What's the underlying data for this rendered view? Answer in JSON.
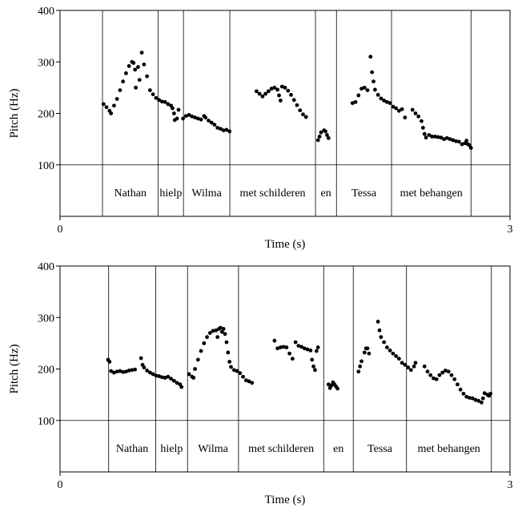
{
  "chart_data": [
    {
      "type": "scatter",
      "xlabel": "Time (s)",
      "ylabel": "Pitch (Hz)",
      "xlim": [
        0,
        3
      ],
      "ylim": [
        0,
        400
      ],
      "x_ticks": [
        "0",
        "3"
      ],
      "y_ticks": [
        "100",
        "200",
        "300",
        "400"
      ],
      "reference_line_y": 100,
      "boundaries": [
        0.283,
        0.654,
        0.823,
        1.132,
        1.703,
        1.843,
        2.21,
        2.74
      ],
      "words": [
        {
          "label": "Nathan",
          "start": 0.283,
          "end": 0.654
        },
        {
          "label": "hielp",
          "start": 0.654,
          "end": 0.823
        },
        {
          "label": "Wilma",
          "start": 0.823,
          "end": 1.132
        },
        {
          "label": "met schilderen",
          "start": 1.132,
          "end": 1.703
        },
        {
          "label": "en",
          "start": 1.703,
          "end": 1.843
        },
        {
          "label": "Tessa",
          "start": 1.843,
          "end": 2.21
        },
        {
          "label": "met behangen",
          "start": 2.21,
          "end": 2.74
        }
      ],
      "segments": [
        [
          [
            0.29,
            218
          ],
          [
            0.31,
            212
          ],
          [
            0.33,
            205
          ],
          [
            0.34,
            200
          ],
          [
            0.36,
            215
          ],
          [
            0.38,
            228
          ],
          [
            0.4,
            245
          ],
          [
            0.42,
            262
          ],
          [
            0.44,
            278
          ],
          [
            0.46,
            292
          ],
          [
            0.48,
            300
          ],
          [
            0.49,
            298
          ],
          [
            0.5,
            285
          ],
          [
            0.505,
            250
          ],
          [
            0.52,
            290
          ],
          [
            0.53,
            265
          ],
          [
            0.545,
            318
          ],
          [
            0.56,
            295
          ],
          [
            0.58,
            272
          ],
          [
            0.6,
            245
          ],
          [
            0.62,
            237
          ],
          [
            0.64,
            230
          ],
          [
            0.66,
            226
          ],
          [
            0.68,
            223
          ],
          [
            0.7,
            222
          ],
          [
            0.72,
            218
          ],
          [
            0.74,
            215
          ],
          [
            0.75,
            210
          ],
          [
            0.76,
            200
          ],
          [
            0.765,
            187
          ],
          [
            0.78,
            190
          ],
          [
            0.79,
            207
          ]
        ],
        [
          [
            0.82,
            190
          ],
          [
            0.84,
            195
          ],
          [
            0.86,
            197
          ],
          [
            0.88,
            194
          ],
          [
            0.9,
            192
          ],
          [
            0.92,
            190
          ],
          [
            0.94,
            188
          ],
          [
            0.96,
            195
          ],
          [
            0.97,
            192
          ],
          [
            0.99,
            186
          ],
          [
            1.01,
            182
          ],
          [
            1.03,
            178
          ],
          [
            1.05,
            172
          ],
          [
            1.07,
            170
          ],
          [
            1.09,
            167
          ],
          [
            1.11,
            168
          ],
          [
            1.13,
            165
          ]
        ],
        [
          [
            1.31,
            243
          ],
          [
            1.33,
            238
          ],
          [
            1.35,
            233
          ],
          [
            1.37,
            238
          ],
          [
            1.39,
            243
          ],
          [
            1.41,
            248
          ],
          [
            1.43,
            250
          ],
          [
            1.45,
            246
          ],
          [
            1.46,
            235
          ],
          [
            1.47,
            225
          ],
          [
            1.48,
            252
          ],
          [
            1.5,
            250
          ],
          [
            1.52,
            244
          ],
          [
            1.54,
            236
          ],
          [
            1.56,
            226
          ],
          [
            1.58,
            216
          ],
          [
            1.6,
            206
          ],
          [
            1.62,
            198
          ],
          [
            1.64,
            193
          ]
        ],
        [
          [
            1.72,
            148
          ],
          [
            1.73,
            155
          ],
          [
            1.74,
            163
          ],
          [
            1.76,
            167
          ],
          [
            1.77,
            165
          ],
          [
            1.78,
            158
          ],
          [
            1.79,
            152
          ]
        ],
        [
          [
            1.95,
            220
          ],
          [
            1.97,
            222
          ],
          [
            1.99,
            235
          ],
          [
            2.01,
            248
          ],
          [
            2.03,
            250
          ],
          [
            2.05,
            245
          ],
          [
            2.07,
            310
          ],
          [
            2.08,
            280
          ],
          [
            2.09,
            262
          ],
          [
            2.1,
            246
          ],
          [
            2.12,
            236
          ],
          [
            2.14,
            229
          ],
          [
            2.16,
            225
          ],
          [
            2.18,
            222
          ],
          [
            2.2,
            220
          ],
          [
            2.22,
            213
          ],
          [
            2.24,
            210
          ],
          [
            2.26,
            205
          ],
          [
            2.28,
            208
          ],
          [
            2.3,
            192
          ]
        ],
        [
          [
            2.35,
            207
          ],
          [
            2.37,
            200
          ],
          [
            2.39,
            194
          ],
          [
            2.41,
            185
          ],
          [
            2.42,
            172
          ],
          [
            2.43,
            160
          ],
          [
            2.44,
            153
          ],
          [
            2.46,
            158
          ],
          [
            2.48,
            155
          ],
          [
            2.5,
            155
          ],
          [
            2.52,
            154
          ],
          [
            2.54,
            153
          ],
          [
            2.56,
            150
          ],
          [
            2.58,
            152
          ],
          [
            2.6,
            150
          ],
          [
            2.62,
            148
          ],
          [
            2.64,
            146
          ],
          [
            2.66,
            145
          ],
          [
            2.68,
            140
          ],
          [
            2.7,
            142
          ],
          [
            2.71,
            147
          ],
          [
            2.72,
            140
          ],
          [
            2.73,
            138
          ],
          [
            2.74,
            133
          ]
        ]
      ]
    },
    {
      "type": "scatter",
      "xlabel": "Time (s)",
      "ylabel": "Pitch (Hz)",
      "xlim": [
        0,
        3
      ],
      "ylim": [
        0,
        400
      ],
      "x_ticks": [
        "0",
        "3"
      ],
      "y_ticks": [
        "100",
        "200",
        "300",
        "400"
      ],
      "reference_line_y": 100,
      "boundaries": [
        0.324,
        0.638,
        0.85,
        1.19,
        1.758,
        1.955,
        2.31,
        2.876
      ],
      "words": [
        {
          "label": "Nathan",
          "start": 0.324,
          "end": 0.638
        },
        {
          "label": "hielp",
          "start": 0.638,
          "end": 0.85
        },
        {
          "label": "Wilma",
          "start": 0.85,
          "end": 1.19
        },
        {
          "label": "met schilderen",
          "start": 1.19,
          "end": 1.758
        },
        {
          "label": "en",
          "start": 1.758,
          "end": 1.955
        },
        {
          "label": "Tessa",
          "start": 1.955,
          "end": 2.31
        },
        {
          "label": "met behangen",
          "start": 2.31,
          "end": 2.876
        }
      ],
      "segments": [
        [
          [
            0.32,
            218
          ],
          [
            0.33,
            214
          ],
          [
            0.34,
            196
          ],
          [
            0.36,
            193
          ],
          [
            0.38,
            195
          ],
          [
            0.4,
            196
          ],
          [
            0.42,
            194
          ],
          [
            0.44,
            195
          ],
          [
            0.46,
            197
          ],
          [
            0.48,
            198
          ],
          [
            0.5,
            199
          ],
          [
            0.54,
            221
          ],
          [
            0.55,
            208
          ],
          [
            0.56,
            203
          ],
          [
            0.58,
            197
          ],
          [
            0.6,
            193
          ],
          [
            0.62,
            190
          ],
          [
            0.64,
            187
          ],
          [
            0.66,
            186
          ],
          [
            0.68,
            184
          ],
          [
            0.7,
            183
          ],
          [
            0.72,
            185
          ],
          [
            0.74,
            181
          ],
          [
            0.76,
            177
          ],
          [
            0.78,
            173
          ],
          [
            0.8,
            170
          ],
          [
            0.81,
            165
          ]
        ],
        [
          [
            0.86,
            190
          ],
          [
            0.88,
            185
          ],
          [
            0.89,
            183
          ],
          [
            0.9,
            200
          ],
          [
            0.92,
            218
          ],
          [
            0.94,
            235
          ],
          [
            0.96,
            250
          ],
          [
            0.98,
            262
          ],
          [
            1.0,
            270
          ],
          [
            1.02,
            274
          ],
          [
            1.04,
            275
          ],
          [
            1.05,
            262
          ],
          [
            1.06,
            278
          ],
          [
            1.07,
            280
          ],
          [
            1.08,
            272
          ],
          [
            1.09,
            278
          ],
          [
            1.1,
            268
          ],
          [
            1.11,
            252
          ],
          [
            1.12,
            232
          ],
          [
            1.13,
            214
          ],
          [
            1.14,
            204
          ],
          [
            1.16,
            198
          ],
          [
            1.18,
            196
          ],
          [
            1.2,
            192
          ],
          [
            1.22,
            185
          ],
          [
            1.24,
            178
          ],
          [
            1.26,
            176
          ],
          [
            1.28,
            173
          ]
        ],
        [
          [
            1.43,
            255
          ],
          [
            1.45,
            240
          ],
          [
            1.47,
            242
          ],
          [
            1.49,
            243
          ],
          [
            1.51,
            242
          ],
          [
            1.53,
            230
          ],
          [
            1.55,
            220
          ],
          [
            1.57,
            252
          ],
          [
            1.59,
            245
          ],
          [
            1.61,
            243
          ],
          [
            1.63,
            240
          ],
          [
            1.65,
            238
          ],
          [
            1.67,
            236
          ],
          [
            1.68,
            218
          ],
          [
            1.69,
            205
          ],
          [
            1.7,
            198
          ],
          [
            1.71,
            235
          ],
          [
            1.72,
            242
          ]
        ],
        [
          [
            1.79,
            170
          ],
          [
            1.8,
            163
          ],
          [
            1.81,
            168
          ],
          [
            1.82,
            174
          ],
          [
            1.83,
            170
          ],
          [
            1.84,
            166
          ],
          [
            1.85,
            162
          ]
        ],
        [
          [
            1.99,
            195
          ],
          [
            2.0,
            205
          ],
          [
            2.01,
            215
          ],
          [
            2.03,
            232
          ],
          [
            2.04,
            240
          ],
          [
            2.05,
            240
          ],
          [
            2.06,
            230
          ],
          [
            2.12,
            292
          ],
          [
            2.13,
            275
          ],
          [
            2.14,
            262
          ],
          [
            2.16,
            252
          ],
          [
            2.18,
            242
          ],
          [
            2.2,
            236
          ],
          [
            2.22,
            230
          ],
          [
            2.24,
            225
          ],
          [
            2.26,
            220
          ],
          [
            2.28,
            212
          ],
          [
            2.3,
            208
          ],
          [
            2.32,
            203
          ],
          [
            2.34,
            198
          ],
          [
            2.36,
            205
          ],
          [
            2.37,
            212
          ]
        ],
        [
          [
            2.43,
            205
          ],
          [
            2.45,
            195
          ],
          [
            2.47,
            188
          ],
          [
            2.49,
            182
          ],
          [
            2.51,
            180
          ],
          [
            2.53,
            188
          ],
          [
            2.55,
            193
          ],
          [
            2.57,
            197
          ],
          [
            2.59,
            195
          ],
          [
            2.61,
            188
          ],
          [
            2.63,
            180
          ],
          [
            2.65,
            170
          ],
          [
            2.67,
            160
          ],
          [
            2.69,
            152
          ],
          [
            2.71,
            146
          ],
          [
            2.73,
            144
          ],
          [
            2.75,
            143
          ],
          [
            2.77,
            140
          ],
          [
            2.79,
            138
          ],
          [
            2.81,
            135
          ],
          [
            2.82,
            143
          ],
          [
            2.83,
            153
          ],
          [
            2.85,
            150
          ],
          [
            2.86,
            148
          ],
          [
            2.87,
            152
          ]
        ]
      ]
    }
  ]
}
